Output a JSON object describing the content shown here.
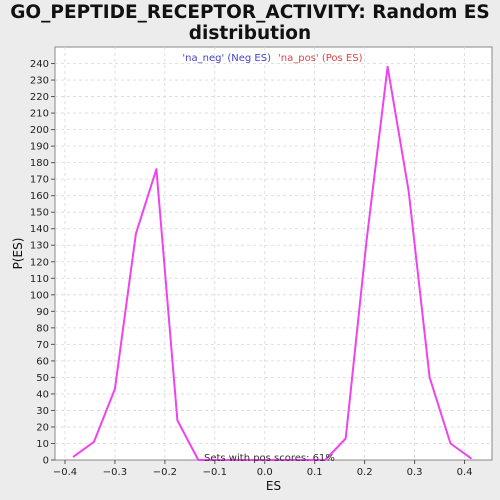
{
  "chart_data": {
    "type": "line",
    "title_line1": "GO_PEPTIDE_RECEPTOR_ACTIVITY: Random ES",
    "title_line2": "distribution",
    "xlabel": "ES",
    "ylabel": "P(ES)",
    "xlim": [
      -0.42,
      0.455
    ],
    "ylim": [
      0,
      250
    ],
    "x_ticks": [
      -0.4,
      -0.3,
      -0.2,
      -0.1,
      0.0,
      0.1,
      0.2,
      0.3,
      0.4
    ],
    "x_tick_labels": [
      "−0.4",
      "−0.3",
      "−0.2",
      "−0.1",
      "0.0",
      "0.1",
      "0.2",
      "0.3",
      "0.4"
    ],
    "y_ticks": [
      0,
      10,
      20,
      30,
      40,
      50,
      60,
      70,
      80,
      90,
      100,
      110,
      120,
      130,
      140,
      150,
      160,
      170,
      180,
      190,
      200,
      210,
      220,
      230,
      240
    ],
    "grid": true,
    "legend": {
      "placement": "top-center",
      "entries": [
        {
          "label": "'na_neg' (Neg ES)",
          "color": "#4444cc"
        },
        {
          "label": "'na_pos' (Pos ES)",
          "color": "#dd4444"
        }
      ]
    },
    "annotation": "Sets with pos scores: 61%",
    "series": [
      {
        "color": "#ee44ee",
        "x": [
          -0.383,
          -0.342,
          -0.3,
          -0.258,
          -0.217,
          -0.175,
          -0.133,
          0.121,
          0.162,
          0.204,
          0.246,
          0.288,
          0.33,
          0.372,
          0.413
        ],
        "y": [
          2,
          11,
          43,
          137,
          176,
          24,
          0,
          0,
          13,
          133,
          238,
          163,
          50,
          10,
          1
        ]
      }
    ]
  }
}
